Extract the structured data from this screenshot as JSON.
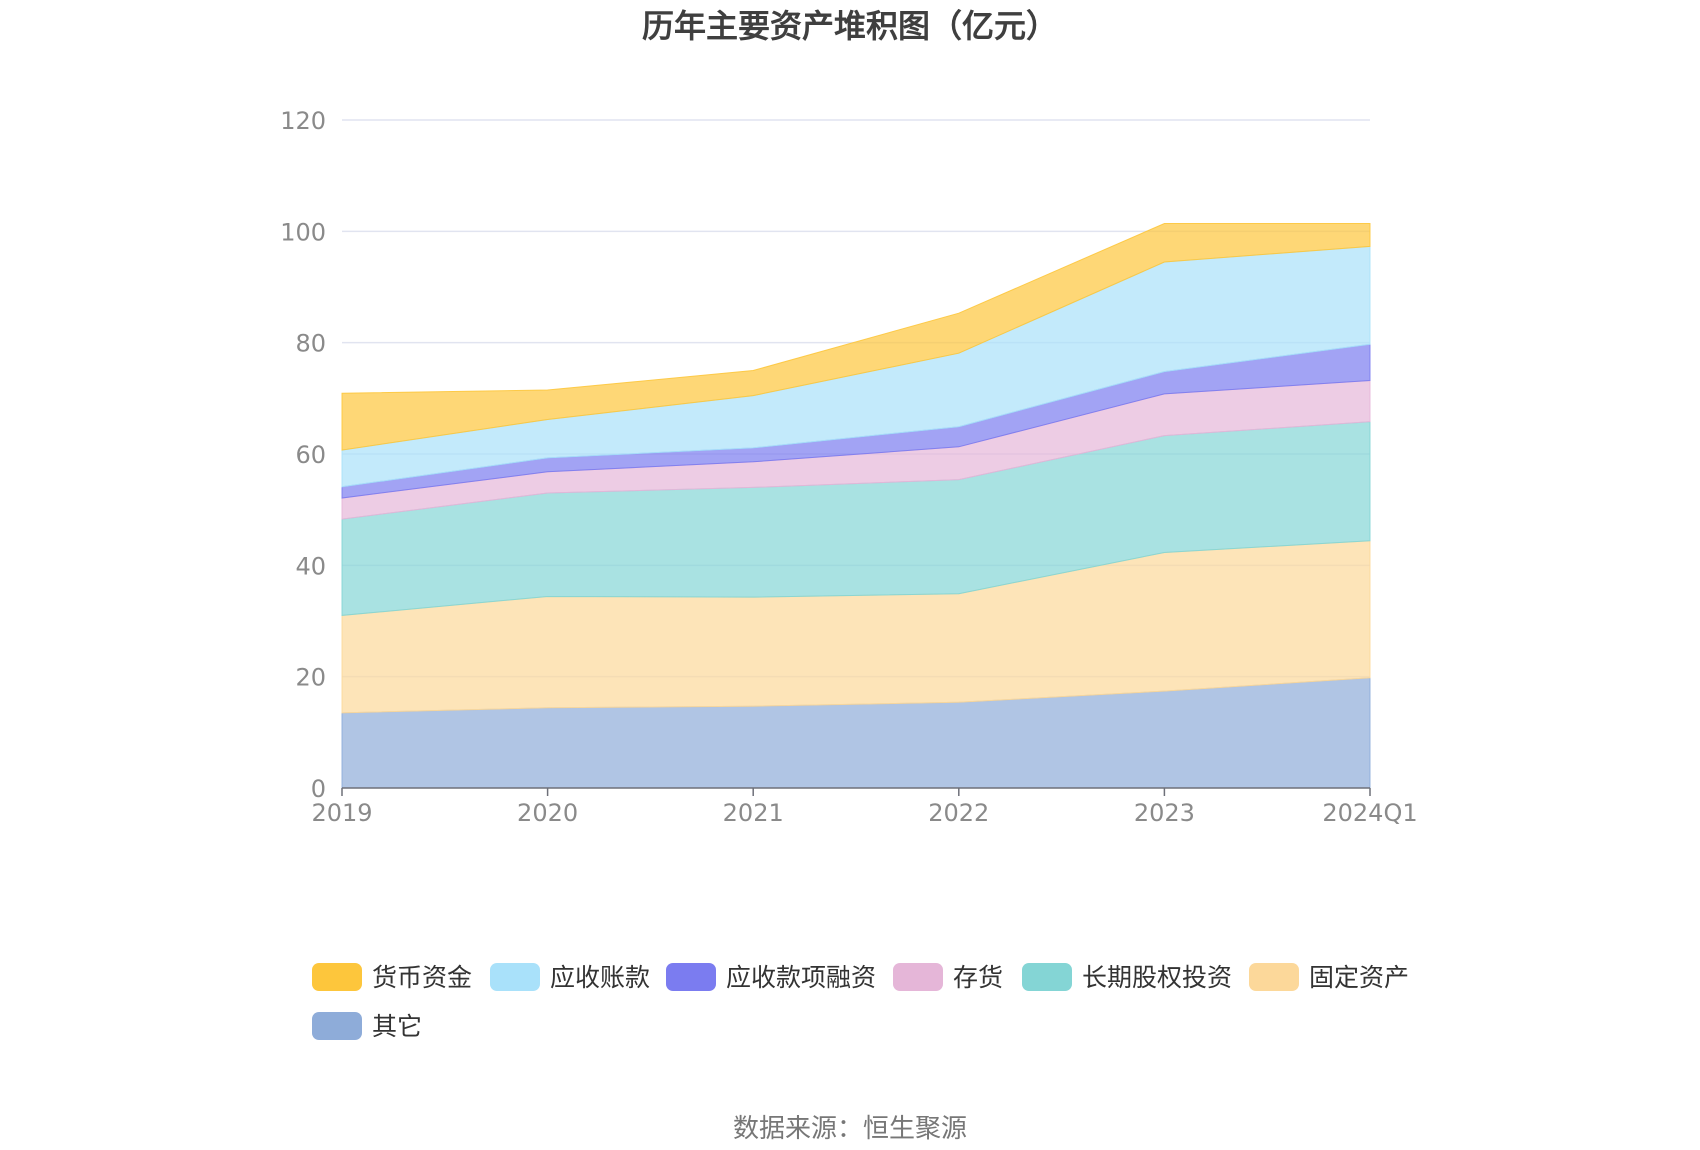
{
  "chart_data": {
    "type": "area",
    "stacked": true,
    "title": "历年主要资产堆积图（亿元）",
    "categories": [
      "2019",
      "2020",
      "2021",
      "2022",
      "2023",
      "2024Q1"
    ],
    "ylim": [
      0,
      120
    ],
    "yticks": [
      0,
      20,
      40,
      60,
      80,
      100,
      120
    ],
    "grid": true,
    "legend_position": "bottom",
    "series": [
      {
        "name": "其它",
        "color": "#8eacd9",
        "values": [
          13.5,
          14.4,
          14.7,
          15.4,
          17.4,
          19.8
        ]
      },
      {
        "name": "固定资产",
        "color": "#fcd89a",
        "values": [
          17.5,
          20.0,
          19.6,
          19.5,
          24.9,
          24.6
        ]
      },
      {
        "name": "长期股权投资",
        "color": "#84d5d5",
        "values": [
          17.3,
          18.6,
          19.7,
          20.5,
          21.0,
          21.4
        ]
      },
      {
        "name": "存货",
        "color": "#e5b6d8",
        "values": [
          3.8,
          3.8,
          4.6,
          5.9,
          7.5,
          7.4
        ]
      },
      {
        "name": "应收款项融资",
        "color": "#7b7cf0",
        "values": [
          2.0,
          2.5,
          2.5,
          3.6,
          4.0,
          6.5
        ]
      },
      {
        "name": "应收账款",
        "color": "#a9e1fa",
        "values": [
          6.6,
          6.9,
          9.4,
          13.2,
          19.7,
          17.6
        ]
      },
      {
        "name": "货币资金",
        "color": "#fdc63c",
        "values": [
          10.2,
          5.3,
          4.5,
          7.2,
          6.9,
          4.1
        ]
      }
    ],
    "legend_order": [
      "货币资金",
      "应收账款",
      "应收款项融资",
      "存货",
      "长期股权投资",
      "固定资产",
      "其它"
    ],
    "source": "数据来源：恒生聚源"
  }
}
